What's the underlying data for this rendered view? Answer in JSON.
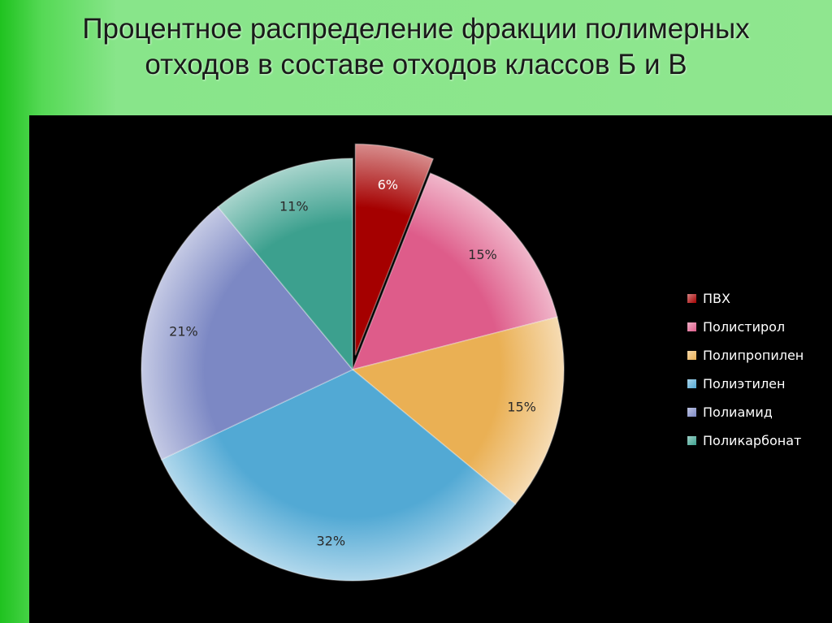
{
  "title_line1": "Процентное распределение фракции полимерных",
  "title_line2": "отходов в составе отходов классов Б и В",
  "chart_data": {
    "type": "pie",
    "title": "Процентное распределение фракции полимерных отходов в составе отходов классов Б и В",
    "legend_position": "right",
    "exploded": [
      "ПВХ"
    ],
    "slices": [
      {
        "label": "ПВХ",
        "value": 6,
        "display": "6%",
        "color": "#a50000"
      },
      {
        "label": "Полистирол",
        "value": 15,
        "display": "15%",
        "color": "#de5c8a"
      },
      {
        "label": "Полипропилен",
        "value": 15,
        "display": "15%",
        "color": "#eab054"
      },
      {
        "label": "Полиэтилен",
        "value": 32,
        "display": "32%",
        "color": "#52a9d4"
      },
      {
        "label": "Полиамид",
        "value": 21,
        "display": "21%",
        "color": "#7c88c4"
      },
      {
        "label": "Поликарбонат",
        "value": 11,
        "display": "11%",
        "color": "#3ca08e"
      }
    ]
  }
}
